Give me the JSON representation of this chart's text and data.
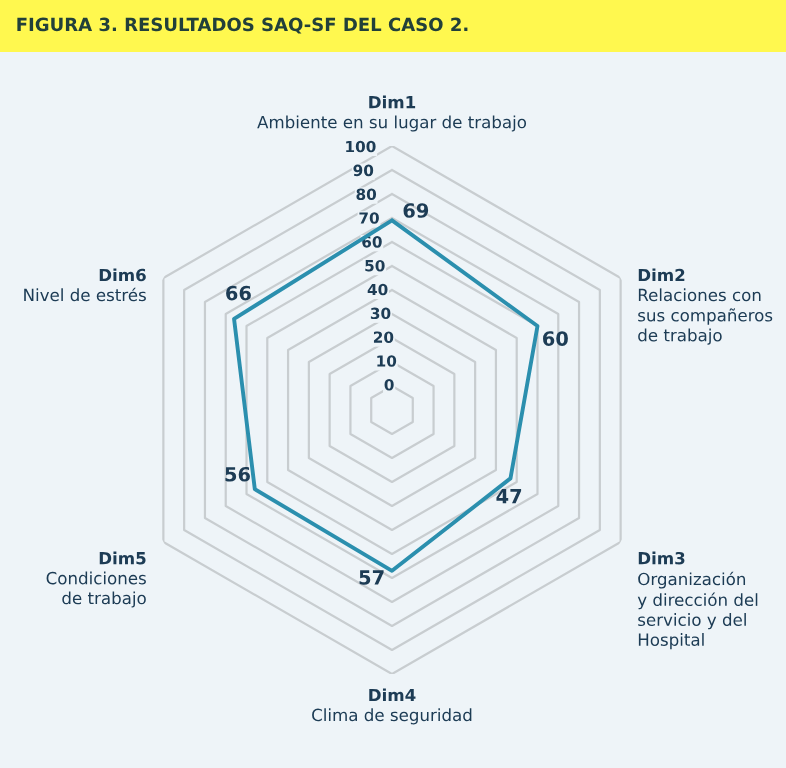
{
  "chart_data": {
    "type": "radar",
    "title": "FIGURA 3. RESULTADOS SAQ-SF DEL CASO 2.",
    "categories": [
      "Dim1\nAmbiente en su lugar de trabajo",
      "Dim2\nRelaciones con\nsus compañeros\nde trabajo",
      "Dim3\nOrganización\ny dirección del\nservicio y del\nHospital",
      "Dim4\nClima de seguridad",
      "Dim5\nCondiciones\nde trabajo",
      "Dim6\nNivel de estrés"
    ],
    "series": [
      {
        "color": "#2b8fae",
        "values": [
          69,
          60,
          47,
          57,
          56,
          66
        ]
      }
    ],
    "ylim": [
      -10,
      100
    ],
    "yticks": [
      0,
      10,
      20,
      30,
      40,
      50,
      60,
      70,
      80,
      90,
      100
    ],
    "data_labels": true,
    "grid": true
  }
}
